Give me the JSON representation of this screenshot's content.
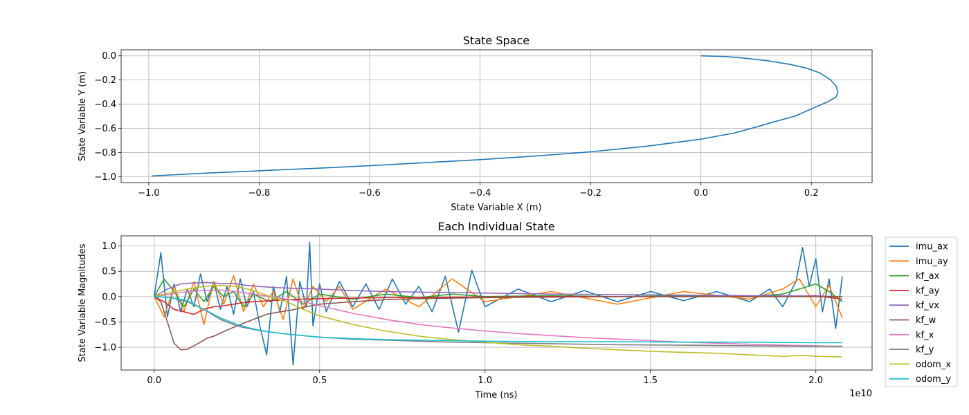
{
  "colors": {
    "imu_ax": "#1f77b4",
    "imu_ay": "#ff7f0e",
    "kf_ax": "#2ca02c",
    "kf_ay": "#d62728",
    "kf_vx": "#9467bd",
    "kf_w": "#8c564b",
    "kf_x": "#e377c2",
    "kf_y": "#7f7f7f",
    "odom_x": "#bcbd22",
    "odom_y": "#17becf"
  },
  "chart_data": [
    {
      "type": "line",
      "title": "State Space",
      "xlabel": "State Variable X (m)",
      "ylabel": "State Variable Y (m)",
      "xlim": [
        -1.05,
        0.31
      ],
      "ylim": [
        -1.05,
        0.05
      ],
      "xticks": [
        -1.0,
        -0.8,
        -0.6,
        -0.4,
        -0.2,
        0.0,
        0.2
      ],
      "xtick_labels": [
        "−1.0",
        "−0.8",
        "−0.6",
        "−0.4",
        "−0.2",
        "0.0",
        "0.2"
      ],
      "yticks": [
        0.0,
        -0.2,
        -0.4,
        -0.6,
        -0.8,
        -1.0
      ],
      "ytick_labels": [
        "0.0",
        "−0.2",
        "−0.4",
        "−0.6",
        "−0.8",
        "−1.0"
      ],
      "grid": true,
      "series": [
        {
          "color": "#1f77b4",
          "x": [
            0.0,
            0.04,
            0.07,
            0.12,
            0.16,
            0.19,
            0.215,
            0.235,
            0.245,
            0.248,
            0.245,
            0.23,
            0.2,
            0.17,
            0.13,
            0.1,
            0.06,
            0.0,
            -0.05,
            -0.1,
            -0.2,
            -0.3,
            -0.4,
            -0.5,
            -0.6,
            -0.7,
            -0.8,
            -0.9,
            -0.995
          ],
          "y": [
            0.0,
            -0.005,
            -0.015,
            -0.04,
            -0.07,
            -0.1,
            -0.14,
            -0.2,
            -0.25,
            -0.3,
            -0.34,
            -0.38,
            -0.44,
            -0.5,
            -0.55,
            -0.59,
            -0.64,
            -0.69,
            -0.72,
            -0.75,
            -0.795,
            -0.83,
            -0.86,
            -0.885,
            -0.91,
            -0.932,
            -0.952,
            -0.972,
            -0.995
          ]
        }
      ]
    },
    {
      "type": "line",
      "title": "Each Individual State",
      "xlabel": "Time (ns)",
      "ylabel": "State Variable Magnitudes",
      "x_offset_label": "1e10",
      "xlim": [
        -0.1,
        2.17
      ],
      "ylim": [
        -1.45,
        1.2
      ],
      "xticks": [
        0.0,
        0.5,
        1.0,
        1.5,
        2.0
      ],
      "xtick_labels": [
        "0.0",
        "0.5",
        "1.0",
        "1.5",
        "2.0"
      ],
      "yticks": [
        1.0,
        0.5,
        0.0,
        -0.5,
        -1.0
      ],
      "ytick_labels": [
        "1.0",
        "0.5",
        "0.0",
        "−0.5",
        "−1.0"
      ],
      "grid": true,
      "legend_position": "outside-right",
      "series": [
        {
          "name": "imu_ax",
          "x": [
            0.0,
            0.02,
            0.04,
            0.06,
            0.08,
            0.1,
            0.12,
            0.14,
            0.16,
            0.18,
            0.2,
            0.22,
            0.24,
            0.26,
            0.28,
            0.3,
            0.32,
            0.34,
            0.36,
            0.38,
            0.4,
            0.42,
            0.44,
            0.46,
            0.47,
            0.48,
            0.5,
            0.52,
            0.56,
            0.6,
            0.64,
            0.68,
            0.72,
            0.76,
            0.8,
            0.84,
            0.88,
            0.92,
            0.96,
            1.0,
            1.1,
            1.2,
            1.3,
            1.4,
            1.5,
            1.6,
            1.7,
            1.8,
            1.86,
            1.9,
            1.94,
            1.96,
            1.98,
            2.0,
            2.02,
            2.04,
            2.06,
            2.08
          ],
          "values": [
            0.0,
            0.87,
            -0.4,
            0.25,
            -0.3,
            0.15,
            -0.2,
            0.45,
            -0.1,
            0.3,
            -0.25,
            0.2,
            -0.35,
            0.35,
            -0.2,
            0.1,
            -0.6,
            -1.15,
            0.2,
            -0.3,
            0.4,
            -1.35,
            0.3,
            -0.2,
            1.07,
            -0.58,
            0.25,
            -0.3,
            0.3,
            -0.2,
            0.25,
            -0.25,
            0.35,
            -0.15,
            0.2,
            -0.3,
            0.4,
            -0.7,
            0.52,
            -0.2,
            0.15,
            -0.1,
            0.12,
            -0.1,
            0.1,
            -0.08,
            0.1,
            -0.1,
            0.15,
            -0.2,
            0.3,
            0.97,
            0.2,
            0.75,
            -0.3,
            0.35,
            -0.63,
            0.4
          ]
        },
        {
          "name": "imu_ay",
          "x": [
            0.0,
            0.03,
            0.06,
            0.09,
            0.12,
            0.15,
            0.18,
            0.21,
            0.24,
            0.27,
            0.3,
            0.33,
            0.36,
            0.39,
            0.42,
            0.45,
            0.48,
            0.52,
            0.56,
            0.6,
            0.7,
            0.8,
            0.9,
            1.0,
            1.2,
            1.4,
            1.6,
            1.8,
            1.9,
            1.95,
            2.0,
            2.04,
            2.08
          ],
          "values": [
            0.0,
            -0.4,
            0.2,
            -0.3,
            0.3,
            -0.55,
            0.3,
            -0.15,
            0.42,
            -0.3,
            0.25,
            -0.2,
            0.1,
            -0.45,
            0.35,
            -0.25,
            0.2,
            -0.1,
            0.2,
            -0.25,
            0.15,
            -0.2,
            0.35,
            -0.1,
            0.1,
            -0.15,
            0.1,
            -0.05,
            0.15,
            0.35,
            -0.2,
            0.22,
            -0.42
          ]
        },
        {
          "name": "kf_ax",
          "x": [
            0.0,
            0.03,
            0.06,
            0.09,
            0.12,
            0.15,
            0.18,
            0.21,
            0.24,
            0.27,
            0.3,
            0.35,
            0.4,
            0.45,
            0.5,
            0.6,
            0.7,
            0.8,
            0.9,
            1.0,
            1.2,
            1.4,
            1.6,
            1.8,
            1.9,
            1.95,
            2.0,
            2.04,
            2.08
          ],
          "values": [
            0.0,
            0.35,
            0.1,
            -0.2,
            0.15,
            -0.1,
            0.2,
            0.0,
            0.1,
            -0.2,
            0.05,
            -0.1,
            0.1,
            -0.15,
            0.05,
            -0.05,
            0.05,
            -0.02,
            0.05,
            0.0,
            0.02,
            0.0,
            0.02,
            0.0,
            0.05,
            0.15,
            0.25,
            0.1,
            -0.1
          ]
        },
        {
          "name": "kf_ay",
          "x": [
            0.0,
            0.03,
            0.06,
            0.09,
            0.12,
            0.15,
            0.18,
            0.21,
            0.24,
            0.27,
            0.3,
            0.35,
            0.4,
            0.45,
            0.5,
            0.6,
            0.7,
            0.8,
            0.9,
            1.0,
            1.2,
            1.4,
            1.6,
            1.8,
            1.9,
            2.0,
            2.08
          ],
          "values": [
            0.0,
            -0.1,
            -0.25,
            -0.3,
            -0.35,
            -0.25,
            -0.2,
            -0.18,
            -0.15,
            -0.12,
            -0.1,
            -0.08,
            -0.06,
            -0.05,
            -0.04,
            -0.03,
            -0.02,
            -0.02,
            -0.01,
            -0.01,
            0.0,
            0.0,
            0.0,
            0.0,
            0.0,
            0.02,
            -0.05
          ]
        },
        {
          "name": "kf_vx",
          "x": [
            0.0,
            0.04,
            0.08,
            0.12,
            0.16,
            0.2,
            0.24,
            0.28,
            0.32,
            0.36,
            0.4,
            0.5,
            0.6,
            0.7,
            0.8,
            0.9,
            1.0,
            1.2,
            1.4,
            1.6,
            1.8,
            2.0,
            2.08
          ],
          "values": [
            0.0,
            0.15,
            0.25,
            0.27,
            0.28,
            0.26,
            0.26,
            0.22,
            0.2,
            0.18,
            0.17,
            0.15,
            0.12,
            0.1,
            0.09,
            0.08,
            0.07,
            0.05,
            0.04,
            0.03,
            0.02,
            0.01,
            0.0
          ]
        },
        {
          "name": "kf_w",
          "x": [
            0.0,
            0.02,
            0.04,
            0.06,
            0.08,
            0.1,
            0.12,
            0.14,
            0.16,
            0.18,
            0.2,
            0.22,
            0.25,
            0.28,
            0.3,
            0.34,
            0.38,
            0.42,
            0.46,
            0.5,
            0.6,
            0.7,
            0.8,
            1.0,
            1.2,
            1.4,
            1.6,
            1.8,
            2.0,
            2.08
          ],
          "values": [
            0.0,
            -0.1,
            -0.5,
            -0.92,
            -1.05,
            -1.04,
            -0.97,
            -0.9,
            -0.82,
            -0.78,
            -0.72,
            -0.66,
            -0.58,
            -0.5,
            -0.45,
            -0.35,
            -0.3,
            -0.26,
            -0.2,
            -0.15,
            -0.1,
            -0.06,
            -0.04,
            -0.02,
            -0.01,
            0.0,
            0.0,
            0.0,
            0.0,
            0.0
          ]
        },
        {
          "name": "kf_x",
          "x": [
            0.0,
            0.05,
            0.1,
            0.15,
            0.2,
            0.25,
            0.3,
            0.35,
            0.4,
            0.45,
            0.5,
            0.6,
            0.7,
            0.8,
            0.9,
            1.0,
            1.1,
            1.2,
            1.3,
            1.4,
            1.5,
            1.6,
            1.7,
            1.8,
            1.9,
            2.0,
            2.08
          ],
          "values": [
            0.0,
            0.05,
            0.1,
            0.12,
            0.13,
            0.1,
            0.05,
            0.0,
            -0.05,
            -0.1,
            -0.18,
            -0.33,
            -0.45,
            -0.55,
            -0.62,
            -0.68,
            -0.73,
            -0.77,
            -0.81,
            -0.84,
            -0.87,
            -0.9,
            -0.92,
            -0.94,
            -0.96,
            -0.97,
            -0.99
          ]
        },
        {
          "name": "kf_y",
          "x": [
            0.0,
            0.05,
            0.1,
            0.15,
            0.2,
            0.25,
            0.3,
            0.35,
            0.4,
            0.45,
            0.5,
            0.6,
            0.7,
            0.8,
            0.9,
            1.0,
            1.2,
            1.4,
            1.6,
            1.8,
            2.0,
            2.08
          ],
          "values": [
            0.0,
            -0.02,
            -0.1,
            -0.25,
            -0.45,
            -0.58,
            -0.65,
            -0.7,
            -0.74,
            -0.77,
            -0.8,
            -0.84,
            -0.86,
            -0.88,
            -0.9,
            -0.91,
            -0.93,
            -0.95,
            -0.96,
            -0.97,
            -0.98,
            -0.98
          ]
        },
        {
          "name": "odom_x",
          "x": [
            0.0,
            0.05,
            0.1,
            0.15,
            0.2,
            0.25,
            0.3,
            0.35,
            0.4,
            0.45,
            0.5,
            0.6,
            0.7,
            0.8,
            0.9,
            1.0,
            1.1,
            1.2,
            1.3,
            1.4,
            1.5,
            1.6,
            1.7,
            1.8,
            1.9,
            1.96,
            2.0,
            2.08
          ],
          "values": [
            0.0,
            0.08,
            0.15,
            0.2,
            0.22,
            0.2,
            0.12,
            0.0,
            -0.1,
            -0.25,
            -0.38,
            -0.55,
            -0.68,
            -0.78,
            -0.85,
            -0.9,
            -0.95,
            -0.98,
            -1.02,
            -1.05,
            -1.08,
            -1.1,
            -1.12,
            -1.15,
            -1.18,
            -1.16,
            -1.18,
            -1.19
          ]
        },
        {
          "name": "odom_y",
          "x": [
            0.0,
            0.05,
            0.1,
            0.15,
            0.2,
            0.25,
            0.3,
            0.35,
            0.4,
            0.45,
            0.5,
            0.6,
            0.7,
            0.8,
            0.9,
            1.0,
            1.2,
            1.4,
            1.6,
            1.8,
            2.0,
            2.08
          ],
          "values": [
            0.0,
            -0.02,
            -0.08,
            -0.25,
            -0.42,
            -0.55,
            -0.64,
            -0.7,
            -0.74,
            -0.77,
            -0.8,
            -0.83,
            -0.85,
            -0.86,
            -0.87,
            -0.88,
            -0.89,
            -0.89,
            -0.9,
            -0.9,
            -0.91,
            -0.91
          ]
        }
      ]
    }
  ]
}
